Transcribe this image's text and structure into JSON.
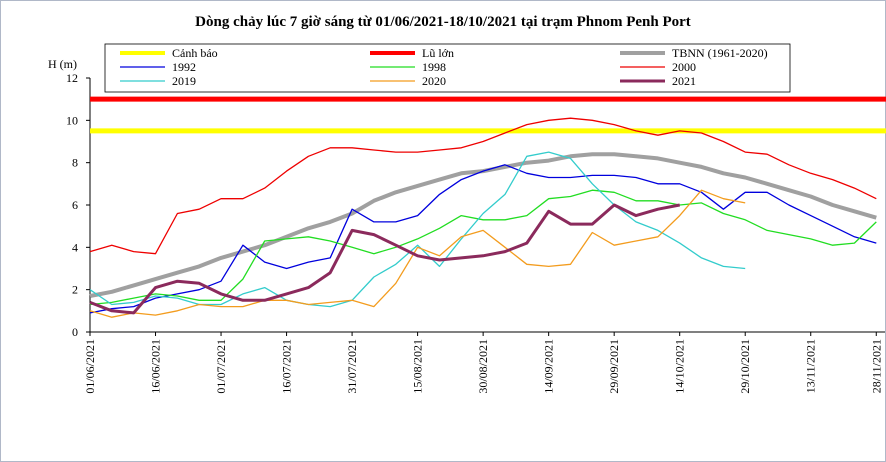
{
  "chart_data": {
    "type": "line",
    "title": "Dòng chảy lúc 7 giờ sáng từ 01/06/2021-18/10/2021 tại trạm Phnom Penh Port",
    "y_label": "H (m)",
    "x": [
      "01/06/2021",
      "06/06/2021",
      "11/06/2021",
      "16/06/2021",
      "21/06/2021",
      "26/06/2021",
      "01/07/2021",
      "06/07/2021",
      "11/07/2021",
      "16/07/2021",
      "21/07/2021",
      "26/07/2021",
      "31/07/2021",
      "05/08/2021",
      "10/08/2021",
      "15/08/2021",
      "20/08/2021",
      "25/08/2021",
      "30/08/2021",
      "04/09/2021",
      "09/09/2021",
      "14/09/2021",
      "19/09/2021",
      "24/09/2021",
      "29/09/2021",
      "04/10/2021",
      "09/10/2021",
      "14/10/2021",
      "19/10/2021",
      "24/10/2021",
      "29/10/2021",
      "03/11/2021",
      "08/11/2021",
      "13/11/2021",
      "18/11/2021",
      "23/11/2021",
      "28/11/2021"
    ],
    "xlim": [
      "01/06/2021",
      "30/11/2021"
    ],
    "xticks": [
      "01/06/2021",
      "16/06/2021",
      "01/07/2021",
      "16/07/2021",
      "31/07/2021",
      "15/08/2021",
      "30/08/2021",
      "14/09/2021",
      "29/09/2021",
      "14/10/2021",
      "29/10/2021",
      "13/11/2021",
      "28/11/2021"
    ],
    "ylim": [
      0,
      12
    ],
    "yticks": [
      0,
      2,
      4,
      6,
      8,
      10,
      12
    ],
    "reference_lines": [
      {
        "name": "Cảnh báo",
        "color": "#ffff00",
        "value": 9.5,
        "line_width": 5
      },
      {
        "name": "Lũ lớn",
        "color": "#ff0000",
        "value": 11,
        "line_width": 5
      }
    ],
    "series": [
      {
        "name": "TBNN (1961-2020)",
        "color": "#a0a0a0",
        "line_width": 4,
        "values": [
          1.7,
          1.9,
          2.2,
          2.5,
          2.8,
          3.1,
          3.5,
          3.8,
          4.1,
          4.5,
          4.9,
          5.2,
          5.6,
          6.2,
          6.6,
          6.9,
          7.2,
          7.5,
          7.6,
          7.8,
          8.0,
          8.1,
          8.3,
          8.4,
          8.4,
          8.3,
          8.2,
          8.0,
          7.8,
          7.5,
          7.3,
          7.0,
          6.7,
          6.4,
          6.0,
          5.7,
          5.4
        ]
      },
      {
        "name": "1992",
        "color": "#0000dd",
        "line_width": 1.3,
        "values": [
          0.9,
          1.1,
          1.2,
          1.6,
          1.8,
          2.0,
          2.4,
          4.1,
          3.3,
          3.0,
          3.3,
          3.5,
          5.8,
          5.2,
          5.2,
          5.5,
          6.5,
          7.2,
          7.6,
          7.9,
          7.5,
          7.3,
          7.3,
          7.4,
          7.4,
          7.3,
          7.0,
          7.0,
          6.6,
          5.8,
          6.6,
          6.6,
          6.0,
          5.5,
          5.0,
          4.5,
          4.2
        ]
      },
      {
        "name": "1998",
        "color": "#22dd22",
        "line_width": 1.3,
        "values": [
          1.3,
          1.4,
          1.6,
          1.8,
          1.7,
          1.5,
          1.5,
          2.5,
          4.3,
          4.4,
          4.5,
          4.3,
          4.0,
          3.7,
          4.0,
          4.4,
          4.9,
          5.5,
          5.3,
          5.3,
          5.5,
          6.3,
          6.4,
          6.7,
          6.6,
          6.2,
          6.2,
          6.0,
          6.1,
          5.6,
          5.3,
          4.8,
          4.6,
          4.4,
          4.1,
          4.2,
          5.2
        ]
      },
      {
        "name": "2000",
        "color": "#ee0000",
        "line_width": 1.3,
        "values": [
          3.8,
          4.1,
          3.8,
          3.7,
          5.6,
          5.8,
          6.3,
          6.3,
          6.8,
          7.6,
          8.3,
          8.7,
          8.7,
          8.6,
          8.5,
          8.5,
          8.6,
          8.7,
          9.0,
          9.4,
          9.8,
          10.0,
          10.1,
          10.0,
          9.8,
          9.5,
          9.3,
          9.5,
          9.4,
          9.0,
          8.5,
          8.4,
          7.9,
          7.5,
          7.2,
          6.8,
          6.3
        ]
      },
      {
        "name": "2019",
        "color": "#33cccc",
        "line_width": 1.3,
        "values": [
          2.0,
          1.3,
          1.4,
          1.7,
          1.6,
          1.3,
          1.3,
          1.8,
          2.1,
          1.5,
          1.3,
          1.2,
          1.5,
          2.6,
          3.2,
          4.1,
          3.1,
          4.4,
          5.6,
          6.5,
          8.3,
          8.5,
          8.2,
          7.0,
          6.0,
          5.2,
          4.8,
          4.2,
          3.5,
          3.1,
          3.0,
          null,
          null,
          null,
          null,
          null,
          null
        ]
      },
      {
        "name": "2020",
        "color": "#f39c1e",
        "line_width": 1.3,
        "values": [
          1.0,
          0.7,
          0.9,
          0.8,
          1.0,
          1.3,
          1.2,
          1.2,
          1.5,
          1.5,
          1.3,
          1.4,
          1.5,
          1.2,
          2.3,
          4.0,
          3.6,
          4.5,
          4.8,
          4.0,
          3.2,
          3.1,
          3.2,
          4.7,
          4.1,
          4.3,
          4.5,
          5.5,
          6.7,
          6.3,
          6.1,
          null,
          null,
          null,
          null,
          null,
          null
        ]
      },
      {
        "name": "2021",
        "color": "#8b2a5c",
        "line_width": 3,
        "values": [
          1.4,
          1.0,
          0.9,
          2.1,
          2.4,
          2.3,
          1.8,
          1.5,
          1.5,
          1.8,
          2.1,
          2.8,
          4.8,
          4.6,
          4.1,
          3.6,
          3.4,
          3.5,
          3.6,
          3.8,
          4.2,
          5.7,
          5.1,
          5.1,
          6.0,
          5.5,
          5.8,
          6.0,
          null,
          null,
          null,
          null,
          null,
          null,
          null,
          null,
          null
        ]
      }
    ]
  }
}
